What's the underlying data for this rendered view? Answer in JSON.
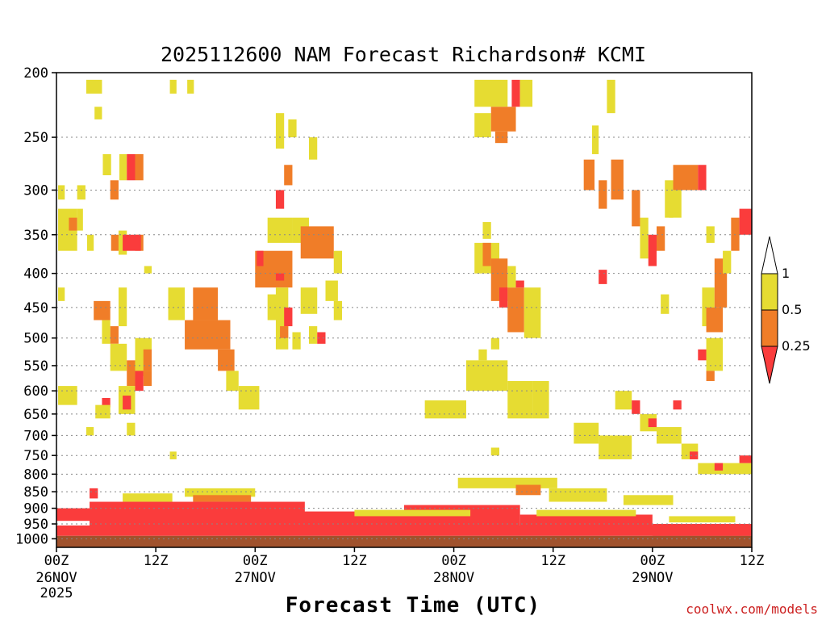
{
  "chart_data": {
    "type": "heatmap",
    "title": "2025112600 NAM Forecast Richardson# KCMI",
    "xlabel": "Forecast Time (UTC)",
    "ylabel": "",
    "credit": "coolwx.com/models",
    "xlim_hours": [
      0,
      84
    ],
    "ylim_hpa": [
      1030,
      200
    ],
    "y_axis": "pressure_log",
    "grid": "dotted horizontal",
    "x_ticks": [
      {
        "hour": 0,
        "label": "00Z",
        "sub": "26NOV",
        "sub2": "2025"
      },
      {
        "hour": 12,
        "label": "12Z",
        "sub": "",
        "sub2": ""
      },
      {
        "hour": 24,
        "label": "00Z",
        "sub": "27NOV",
        "sub2": ""
      },
      {
        "hour": 36,
        "label": "12Z",
        "sub": "",
        "sub2": ""
      },
      {
        "hour": 48,
        "label": "00Z",
        "sub": "28NOV",
        "sub2": ""
      },
      {
        "hour": 60,
        "label": "12Z",
        "sub": "",
        "sub2": ""
      },
      {
        "hour": 72,
        "label": "00Z",
        "sub": "29NOV",
        "sub2": ""
      },
      {
        "hour": 84,
        "label": "12Z",
        "sub": "",
        "sub2": ""
      }
    ],
    "y_ticks": [
      200,
      250,
      300,
      350,
      400,
      450,
      500,
      550,
      600,
      650,
      700,
      750,
      800,
      850,
      900,
      950,
      1000
    ],
    "legend": {
      "levels": [
        "1",
        "0.5",
        "0.25"
      ],
      "bins": [
        {
          "range": "0.5-1",
          "color": "#e6dc32"
        },
        {
          "range": "0.25-0.5",
          "color": "#f07d28"
        },
        {
          "range": "<0.25",
          "color": "#fa3c3c"
        }
      ],
      "extend_high_color": "#ffffff",
      "extend_low_color": "#fa3c3c"
    },
    "ground_color": "#a0522d",
    "cells": [
      {
        "t0": 3.6,
        "t1": 5.5,
        "p0": 205,
        "p1": 215,
        "bin": "0.5-1"
      },
      {
        "t0": 13.7,
        "t1": 14.5,
        "p0": 205,
        "p1": 215,
        "bin": "0.5-1"
      },
      {
        "t0": 15.8,
        "t1": 16.6,
        "p0": 205,
        "p1": 215,
        "bin": "0.5-1"
      },
      {
        "t0": 4.6,
        "t1": 5.5,
        "p0": 225,
        "p1": 235,
        "bin": "0.5-1"
      },
      {
        "t0": 5.6,
        "t1": 6.6,
        "p0": 265,
        "p1": 285,
        "bin": "0.5-1"
      },
      {
        "t0": 7.6,
        "t1": 8.5,
        "p0": 265,
        "p1": 290,
        "bin": "0.5-1"
      },
      {
        "t0": 8.5,
        "t1": 9.5,
        "p0": 265,
        "p1": 290,
        "bin": "<0.25"
      },
      {
        "t0": 9.5,
        "t1": 10.5,
        "p0": 265,
        "p1": 290,
        "bin": "0.25-0.5"
      },
      {
        "t0": 6.5,
        "t1": 7.5,
        "p0": 290,
        "p1": 310,
        "bin": "0.25-0.5"
      },
      {
        "t0": 0.2,
        "t1": 1.0,
        "p0": 295,
        "p1": 310,
        "bin": "0.5-1"
      },
      {
        "t0": 2.5,
        "t1": 3.5,
        "p0": 295,
        "p1": 310,
        "bin": "0.5-1"
      },
      {
        "t0": 0.2,
        "t1": 2.5,
        "p0": 320,
        "p1": 370,
        "bin": "0.5-1"
      },
      {
        "t0": 1.5,
        "t1": 2.5,
        "p0": 330,
        "p1": 345,
        "bin": "0.25-0.5"
      },
      {
        "t0": 2.5,
        "t1": 3.2,
        "p0": 320,
        "p1": 345,
        "bin": "0.5-1"
      },
      {
        "t0": 3.7,
        "t1": 4.5,
        "p0": 350,
        "p1": 370,
        "bin": "0.5-1"
      },
      {
        "t0": 6.6,
        "t1": 7.5,
        "p0": 350,
        "p1": 370,
        "bin": "0.25-0.5"
      },
      {
        "t0": 7.5,
        "t1": 8.5,
        "p0": 345,
        "p1": 375,
        "bin": "0.5-1"
      },
      {
        "t0": 9.5,
        "t1": 10.5,
        "p0": 350,
        "p1": 370,
        "bin": "0.25-0.5"
      },
      {
        "t0": 8.0,
        "t1": 10.2,
        "p0": 350,
        "p1": 370,
        "bin": "<0.25"
      },
      {
        "t0": 10.6,
        "t1": 11.5,
        "p0": 390,
        "p1": 400,
        "bin": "0.5-1"
      },
      {
        "t0": 0.2,
        "t1": 1.0,
        "p0": 420,
        "p1": 440,
        "bin": "0.5-1"
      },
      {
        "t0": 4.5,
        "t1": 6.5,
        "p0": 440,
        "p1": 470,
        "bin": "0.25-0.5"
      },
      {
        "t0": 5.5,
        "t1": 6.5,
        "p0": 470,
        "p1": 510,
        "bin": "0.5-1"
      },
      {
        "t0": 6.5,
        "t1": 7.5,
        "p0": 480,
        "p1": 510,
        "bin": "0.25-0.5"
      },
      {
        "t0": 7.5,
        "t1": 8.5,
        "p0": 420,
        "p1": 480,
        "bin": "0.5-1"
      },
      {
        "t0": 6.5,
        "t1": 8.5,
        "p0": 510,
        "p1": 560,
        "bin": "0.5-1"
      },
      {
        "t0": 8.5,
        "t1": 9.5,
        "p0": 540,
        "p1": 590,
        "bin": "0.25-0.5"
      },
      {
        "t0": 9.5,
        "t1": 11.5,
        "p0": 500,
        "p1": 570,
        "bin": "0.5-1"
      },
      {
        "t0": 10.5,
        "t1": 11.5,
        "p0": 520,
        "p1": 560,
        "bin": "0.25-0.5"
      },
      {
        "t0": 9.5,
        "t1": 10.5,
        "p0": 560,
        "p1": 600,
        "bin": "<0.25"
      },
      {
        "t0": 10.5,
        "t1": 11.5,
        "p0": 560,
        "p1": 590,
        "bin": "0.25-0.5"
      },
      {
        "t0": 7.5,
        "t1": 9.5,
        "p0": 590,
        "p1": 650,
        "bin": "0.5-1"
      },
      {
        "t0": 8.0,
        "t1": 9.0,
        "p0": 610,
        "p1": 640,
        "bin": "<0.25"
      },
      {
        "t0": 5.5,
        "t1": 6.5,
        "p0": 615,
        "p1": 635,
        "bin": "<0.25"
      },
      {
        "t0": 4.7,
        "t1": 6.5,
        "p0": 630,
        "p1": 660,
        "bin": "0.5-1"
      },
      {
        "t0": 0.2,
        "t1": 2.5,
        "p0": 590,
        "p1": 630,
        "bin": "0.5-1"
      },
      {
        "t0": 3.6,
        "t1": 4.5,
        "p0": 680,
        "p1": 700,
        "bin": "0.5-1"
      },
      {
        "t0": 8.5,
        "t1": 9.5,
        "p0": 670,
        "p1": 700,
        "bin": "0.5-1"
      },
      {
        "t0": 13.5,
        "t1": 15.5,
        "p0": 420,
        "p1": 470,
        "bin": "0.5-1"
      },
      {
        "t0": 16.5,
        "t1": 19.5,
        "p0": 420,
        "p1": 470,
        "bin": "0.25-0.5"
      },
      {
        "t0": 15.5,
        "t1": 21.0,
        "p0": 470,
        "p1": 520,
        "bin": "0.25-0.5"
      },
      {
        "t0": 19.5,
        "t1": 21.5,
        "p0": 520,
        "p1": 560,
        "bin": "0.25-0.5"
      },
      {
        "t0": 20.5,
        "t1": 22.0,
        "p0": 560,
        "p1": 600,
        "bin": "0.5-1"
      },
      {
        "t0": 22.0,
        "t1": 24.5,
        "p0": 590,
        "p1": 640,
        "bin": "0.5-1"
      },
      {
        "t0": 13.7,
        "t1": 14.5,
        "p0": 740,
        "p1": 760,
        "bin": "0.5-1"
      },
      {
        "t0": 26.5,
        "t1": 27.5,
        "p0": 230,
        "p1": 260,
        "bin": "0.5-1"
      },
      {
        "t0": 27.5,
        "t1": 28.5,
        "p0": 275,
        "p1": 295,
        "bin": "0.25-0.5"
      },
      {
        "t0": 28.0,
        "t1": 29.0,
        "p0": 235,
        "p1": 250,
        "bin": "0.5-1"
      },
      {
        "t0": 30.5,
        "t1": 31.5,
        "p0": 250,
        "p1": 270,
        "bin": "0.5-1"
      },
      {
        "t0": 26.5,
        "t1": 27.5,
        "p0": 300,
        "p1": 320,
        "bin": "<0.25"
      },
      {
        "t0": 25.5,
        "t1": 28.5,
        "p0": 330,
        "p1": 360,
        "bin": "0.5-1"
      },
      {
        "t0": 28.5,
        "t1": 30.5,
        "p0": 330,
        "p1": 360,
        "bin": "0.5-1"
      },
      {
        "t0": 29.5,
        "t1": 33.5,
        "p0": 340,
        "p1": 380,
        "bin": "0.25-0.5"
      },
      {
        "t0": 33.5,
        "t1": 34.5,
        "p0": 370,
        "p1": 400,
        "bin": "0.5-1"
      },
      {
        "t0": 24.0,
        "t1": 28.5,
        "p0": 370,
        "p1": 420,
        "bin": "0.25-0.5"
      },
      {
        "t0": 24.2,
        "t1": 25.0,
        "p0": 370,
        "p1": 390,
        "bin": "<0.25"
      },
      {
        "t0": 25.5,
        "t1": 27.5,
        "p0": 430,
        "p1": 470,
        "bin": "0.5-1"
      },
      {
        "t0": 26.5,
        "t1": 28.0,
        "p0": 420,
        "p1": 520,
        "bin": "0.5-1"
      },
      {
        "t0": 27.5,
        "t1": 28.5,
        "p0": 450,
        "p1": 480,
        "bin": "<0.25"
      },
      {
        "t0": 27.0,
        "t1": 28.0,
        "p0": 480,
        "p1": 500,
        "bin": "0.25-0.5"
      },
      {
        "t0": 28.5,
        "t1": 29.5,
        "p0": 490,
        "p1": 520,
        "bin": "0.5-1"
      },
      {
        "t0": 29.5,
        "t1": 31.5,
        "p0": 420,
        "p1": 460,
        "bin": "0.5-1"
      },
      {
        "t0": 30.5,
        "t1": 31.5,
        "p0": 480,
        "p1": 510,
        "bin": "0.5-1"
      },
      {
        "t0": 31.5,
        "t1": 32.5,
        "p0": 490,
        "p1": 510,
        "bin": "<0.25"
      },
      {
        "t0": 33.5,
        "t1": 34.5,
        "p0": 440,
        "p1": 470,
        "bin": "0.5-1"
      },
      {
        "t0": 32.5,
        "t1": 34.0,
        "p0": 410,
        "p1": 440,
        "bin": "0.5-1"
      },
      {
        "t0": 26.5,
        "t1": 27.5,
        "p0": 400,
        "p1": 410,
        "bin": "<0.25"
      },
      {
        "t0": 50.5,
        "t1": 54.5,
        "p0": 205,
        "p1": 225,
        "bin": "0.5-1"
      },
      {
        "t0": 55.0,
        "t1": 56.0,
        "p0": 205,
        "p1": 225,
        "bin": "<0.25"
      },
      {
        "t0": 56.0,
        "t1": 57.5,
        "p0": 205,
        "p1": 225,
        "bin": "0.5-1"
      },
      {
        "t0": 50.5,
        "t1": 52.5,
        "p0": 230,
        "p1": 250,
        "bin": "0.5-1"
      },
      {
        "t0": 52.5,
        "t1": 55.5,
        "p0": 225,
        "p1": 245,
        "bin": "0.25-0.5"
      },
      {
        "t0": 53.0,
        "t1": 54.5,
        "p0": 245,
        "p1": 255,
        "bin": "0.25-0.5"
      },
      {
        "t0": 51.5,
        "t1": 52.5,
        "p0": 335,
        "p1": 355,
        "bin": "0.5-1"
      },
      {
        "t0": 50.5,
        "t1": 53.5,
        "p0": 360,
        "p1": 400,
        "bin": "0.5-1"
      },
      {
        "t0": 51.5,
        "t1": 52.5,
        "p0": 360,
        "p1": 390,
        "bin": "0.25-0.5"
      },
      {
        "t0": 52.5,
        "t1": 54.5,
        "p0": 380,
        "p1": 440,
        "bin": "0.25-0.5"
      },
      {
        "t0": 53.5,
        "t1": 54.5,
        "p0": 420,
        "p1": 450,
        "bin": "<0.25"
      },
      {
        "t0": 54.5,
        "t1": 55.5,
        "p0": 390,
        "p1": 420,
        "bin": "0.5-1"
      },
      {
        "t0": 54.5,
        "t1": 56.5,
        "p0": 420,
        "p1": 490,
        "bin": "0.25-0.5"
      },
      {
        "t0": 56.5,
        "t1": 58.5,
        "p0": 420,
        "p1": 500,
        "bin": "0.5-1"
      },
      {
        "t0": 55.5,
        "t1": 56.5,
        "p0": 410,
        "p1": 420,
        "bin": "<0.25"
      },
      {
        "t0": 52.5,
        "t1": 53.5,
        "p0": 500,
        "p1": 520,
        "bin": "0.5-1"
      },
      {
        "t0": 51.0,
        "t1": 52.0,
        "p0": 520,
        "p1": 540,
        "bin": "0.5-1"
      },
      {
        "t0": 49.5,
        "t1": 54.5,
        "p0": 540,
        "p1": 600,
        "bin": "0.5-1"
      },
      {
        "t0": 54.5,
        "t1": 57.5,
        "p0": 580,
        "p1": 660,
        "bin": "0.5-1"
      },
      {
        "t0": 57.5,
        "t1": 59.5,
        "p0": 580,
        "p1": 660,
        "bin": "0.5-1"
      },
      {
        "t0": 44.5,
        "t1": 49.5,
        "p0": 620,
        "p1": 660,
        "bin": "0.5-1"
      },
      {
        "t0": 52.5,
        "t1": 53.5,
        "p0": 730,
        "p1": 750,
        "bin": "0.5-1"
      },
      {
        "t0": 64.7,
        "t1": 65.5,
        "p0": 240,
        "p1": 265,
        "bin": "0.5-1"
      },
      {
        "t0": 66.5,
        "t1": 67.5,
        "p0": 205,
        "p1": 230,
        "bin": "0.5-1"
      },
      {
        "t0": 63.7,
        "t1": 65.0,
        "p0": 270,
        "p1": 300,
        "bin": "0.25-0.5"
      },
      {
        "t0": 65.5,
        "t1": 66.5,
        "p0": 290,
        "p1": 320,
        "bin": "0.25-0.5"
      },
      {
        "t0": 67.0,
        "t1": 68.5,
        "p0": 270,
        "p1": 310,
        "bin": "0.25-0.5"
      },
      {
        "t0": 69.5,
        "t1": 70.5,
        "p0": 300,
        "p1": 340,
        "bin": "0.25-0.5"
      },
      {
        "t0": 70.5,
        "t1": 71.5,
        "p0": 330,
        "p1": 380,
        "bin": "0.5-1"
      },
      {
        "t0": 71.5,
        "t1": 72.5,
        "p0": 350,
        "p1": 390,
        "bin": "<0.25"
      },
      {
        "t0": 72.5,
        "t1": 73.5,
        "p0": 340,
        "p1": 370,
        "bin": "0.25-0.5"
      },
      {
        "t0": 73.5,
        "t1": 74.5,
        "p0": 290,
        "p1": 330,
        "bin": "0.5-1"
      },
      {
        "t0": 74.5,
        "t1": 77.5,
        "p0": 275,
        "p1": 300,
        "bin": "0.25-0.5"
      },
      {
        "t0": 77.5,
        "t1": 78.5,
        "p0": 275,
        "p1": 300,
        "bin": "<0.25"
      },
      {
        "t0": 74.0,
        "t1": 75.5,
        "p0": 300,
        "p1": 330,
        "bin": "0.5-1"
      },
      {
        "t0": 65.5,
        "t1": 66.5,
        "p0": 395,
        "p1": 415,
        "bin": "<0.25"
      },
      {
        "t0": 73.0,
        "t1": 74.0,
        "p0": 430,
        "p1": 460,
        "bin": "0.5-1"
      },
      {
        "t0": 78.5,
        "t1": 79.5,
        "p0": 340,
        "p1": 360,
        "bin": "0.5-1"
      },
      {
        "t0": 78.0,
        "t1": 79.5,
        "p0": 420,
        "p1": 480,
        "bin": "0.5-1"
      },
      {
        "t0": 78.5,
        "t1": 80.5,
        "p0": 450,
        "p1": 490,
        "bin": "0.25-0.5"
      },
      {
        "t0": 79.5,
        "t1": 81.0,
        "p0": 380,
        "p1": 450,
        "bin": "0.25-0.5"
      },
      {
        "t0": 80.5,
        "t1": 81.5,
        "p0": 370,
        "p1": 400,
        "bin": "0.5-1"
      },
      {
        "t0": 81.5,
        "t1": 82.5,
        "p0": 330,
        "p1": 370,
        "bin": "0.25-0.5"
      },
      {
        "t0": 82.5,
        "t1": 84.0,
        "p0": 320,
        "p1": 350,
        "bin": "<0.25"
      },
      {
        "t0": 78.5,
        "t1": 80.5,
        "p0": 500,
        "p1": 560,
        "bin": "0.5-1"
      },
      {
        "t0": 77.5,
        "t1": 78.5,
        "p0": 520,
        "p1": 540,
        "bin": "<0.25"
      },
      {
        "t0": 78.5,
        "t1": 79.5,
        "p0": 560,
        "p1": 580,
        "bin": "0.25-0.5"
      },
      {
        "t0": 67.5,
        "t1": 69.5,
        "p0": 600,
        "p1": 640,
        "bin": "0.5-1"
      },
      {
        "t0": 69.5,
        "t1": 70.5,
        "p0": 620,
        "p1": 650,
        "bin": "<0.25"
      },
      {
        "t0": 70.5,
        "t1": 72.5,
        "p0": 650,
        "p1": 690,
        "bin": "0.5-1"
      },
      {
        "t0": 71.5,
        "t1": 72.5,
        "p0": 660,
        "p1": 680,
        "bin": "<0.25"
      },
      {
        "t0": 72.5,
        "t1": 75.5,
        "p0": 680,
        "p1": 720,
        "bin": "0.5-1"
      },
      {
        "t0": 75.5,
        "t1": 77.5,
        "p0": 720,
        "p1": 760,
        "bin": "0.5-1"
      },
      {
        "t0": 76.5,
        "t1": 77.5,
        "p0": 740,
        "p1": 760,
        "bin": "<0.25"
      },
      {
        "t0": 74.5,
        "t1": 75.5,
        "p0": 620,
        "p1": 640,
        "bin": "<0.25"
      },
      {
        "t0": 62.5,
        "t1": 65.5,
        "p0": 670,
        "p1": 720,
        "bin": "0.5-1"
      },
      {
        "t0": 65.5,
        "t1": 69.5,
        "p0": 700,
        "p1": 760,
        "bin": "0.5-1"
      },
      {
        "t0": 77.5,
        "t1": 84.0,
        "p0": 770,
        "p1": 800,
        "bin": "0.5-1"
      },
      {
        "t0": 79.5,
        "t1": 80.5,
        "p0": 770,
        "p1": 790,
        "bin": "<0.25"
      },
      {
        "t0": 82.5,
        "t1": 84.0,
        "p0": 750,
        "p1": 770,
        "bin": "<0.25"
      },
      {
        "t0": 48.5,
        "t1": 60.5,
        "p0": 810,
        "p1": 840,
        "bin": "0.5-1"
      },
      {
        "t0": 55.5,
        "t1": 58.5,
        "p0": 830,
        "p1": 860,
        "bin": "0.25-0.5"
      },
      {
        "t0": 59.5,
        "t1": 66.5,
        "p0": 840,
        "p1": 880,
        "bin": "0.5-1"
      },
      {
        "t0": 68.5,
        "t1": 74.5,
        "p0": 860,
        "p1": 890,
        "bin": "0.5-1"
      },
      {
        "t0": 4.0,
        "t1": 5.0,
        "p0": 840,
        "p1": 870,
        "bin": "<0.25"
      },
      {
        "t0": 8.0,
        "t1": 14.0,
        "p0": 855,
        "p1": 880,
        "bin": "0.5-1"
      },
      {
        "t0": 15.5,
        "t1": 24.0,
        "p0": 840,
        "p1": 865,
        "bin": "0.5-1"
      },
      {
        "t0": 16.5,
        "t1": 23.5,
        "p0": 860,
        "p1": 880,
        "bin": "0.25-0.5"
      },
      {
        "t0": 0.0,
        "t1": 8.0,
        "p0": 900,
        "p1": 940,
        "bin": "<0.25"
      },
      {
        "t0": 4.0,
        "t1": 30.0,
        "p0": 880,
        "p1": 960,
        "bin": "<0.25"
      },
      {
        "t0": 27.0,
        "t1": 42.0,
        "p0": 910,
        "p1": 960,
        "bin": "<0.25"
      },
      {
        "t0": 42.0,
        "t1": 56.0,
        "p0": 890,
        "p1": 970,
        "bin": "<0.25"
      },
      {
        "t0": 56.0,
        "t1": 72.0,
        "p0": 920,
        "p1": 975,
        "bin": "<0.25"
      },
      {
        "t0": 72.0,
        "t1": 84.0,
        "p0": 950,
        "p1": 990,
        "bin": "<0.25"
      },
      {
        "t0": 0.0,
        "t1": 84.0,
        "p0": 955,
        "p1": 990,
        "bin": "<0.25"
      },
      {
        "t0": 36.0,
        "t1": 50.0,
        "p0": 905,
        "p1": 925,
        "bin": "0.5-1"
      },
      {
        "t0": 58.0,
        "t1": 70.0,
        "p0": 905,
        "p1": 925,
        "bin": "0.5-1"
      },
      {
        "t0": 74.0,
        "t1": 82.0,
        "p0": 925,
        "p1": 945,
        "bin": "0.5-1"
      },
      {
        "t0": 0.0,
        "t1": 84.0,
        "p0": 990,
        "p1": 1030,
        "bin": "ground"
      }
    ]
  }
}
